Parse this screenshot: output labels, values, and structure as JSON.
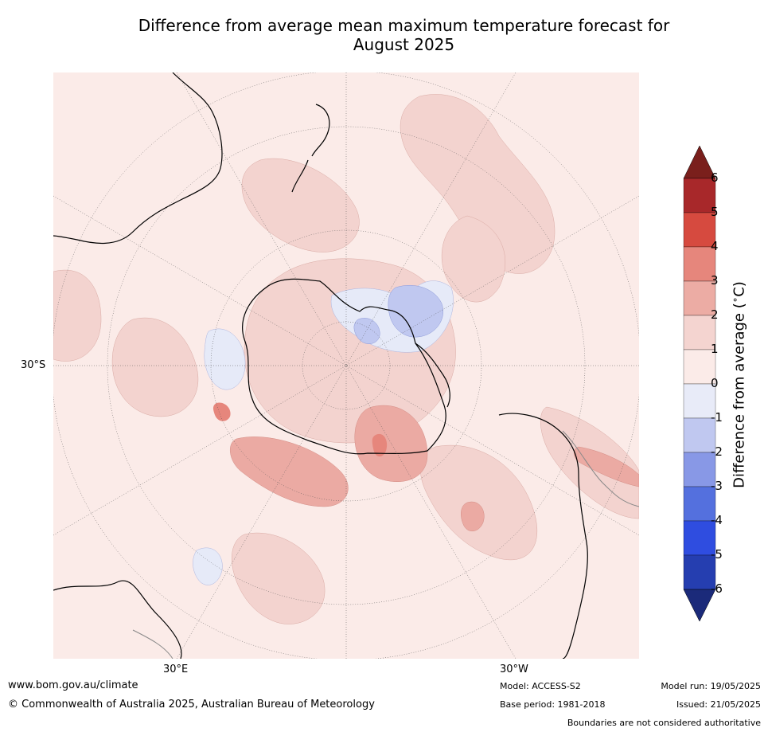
{
  "title_line1": "Difference from average mean maximum temperature forecast for",
  "title_line2": "August 2025",
  "map": {
    "projection": "south-polar-stereographic",
    "lat_label": "30°S",
    "lon_label_east": "30°E",
    "lon_label_west": "30°W",
    "ocean_color": "#fbebe8",
    "coastline_color": "#000000",
    "border_color": "#888888",
    "anomaly_regions": [
      {
        "name": "weddell-sea-cool",
        "level": -2,
        "color": "#c0c8f0"
      },
      {
        "name": "dronning-maud-cool",
        "level": -1,
        "color": "#e6eaf8"
      },
      {
        "name": "antarctic-interior-warm",
        "level": 1,
        "color": "#f3d3cf"
      },
      {
        "name": "ross-sea-warm",
        "level": 2,
        "color": "#ebaaa3"
      },
      {
        "name": "indian-ocean-warm",
        "level": 2,
        "color": "#ebaaa3"
      },
      {
        "name": "pacific-warm",
        "level": 1,
        "color": "#f3d3cf"
      }
    ]
  },
  "colorbar": {
    "title": "Difference from average (°C)",
    "title_prefix": "Difference from average (",
    "title_unit": "°C",
    "title_suffix": ")",
    "ticks": [
      "6",
      "5",
      "4",
      "3",
      "2",
      "1",
      "0",
      "-1",
      "-2",
      "-3",
      "-4",
      "-5",
      "-6"
    ],
    "bins": [
      {
        "from": 5,
        "to": 6,
        "color": "#a8282a"
      },
      {
        "from": 4,
        "to": 5,
        "color": "#d64a3f"
      },
      {
        "from": 3,
        "to": 4,
        "color": "#e6867c"
      },
      {
        "from": 2,
        "to": 3,
        "color": "#ecaca4"
      },
      {
        "from": 1,
        "to": 2,
        "color": "#f4d4d0"
      },
      {
        "from": 0,
        "to": 1,
        "color": "#fbebe8"
      },
      {
        "from": -1,
        "to": 0,
        "color": "#e8ebf8"
      },
      {
        "from": -2,
        "to": -1,
        "color": "#c0c8f0"
      },
      {
        "from": -3,
        "to": -2,
        "color": "#8898e6"
      },
      {
        "from": -4,
        "to": -3,
        "color": "#5470de"
      },
      {
        "from": -5,
        "to": -4,
        "color": "#2f4de0"
      },
      {
        "from": -6,
        "to": -5,
        "color": "#253eb0"
      }
    ],
    "over_color": "#7a1f1c",
    "under_color": "#1b2a7a"
  },
  "footer": {
    "website": "www.bom.gov.au/climate",
    "copyright": "© Commonwealth of Australia 2025, Australian Bureau of Meteorology",
    "model": "Model: ACCESS-S2",
    "base_period": "Base period: 1981-2018",
    "model_run": "Model run: 19/05/2025",
    "issued": "Issued: 21/05/2025",
    "disclaimer": "Boundaries are not considered authoritative"
  }
}
